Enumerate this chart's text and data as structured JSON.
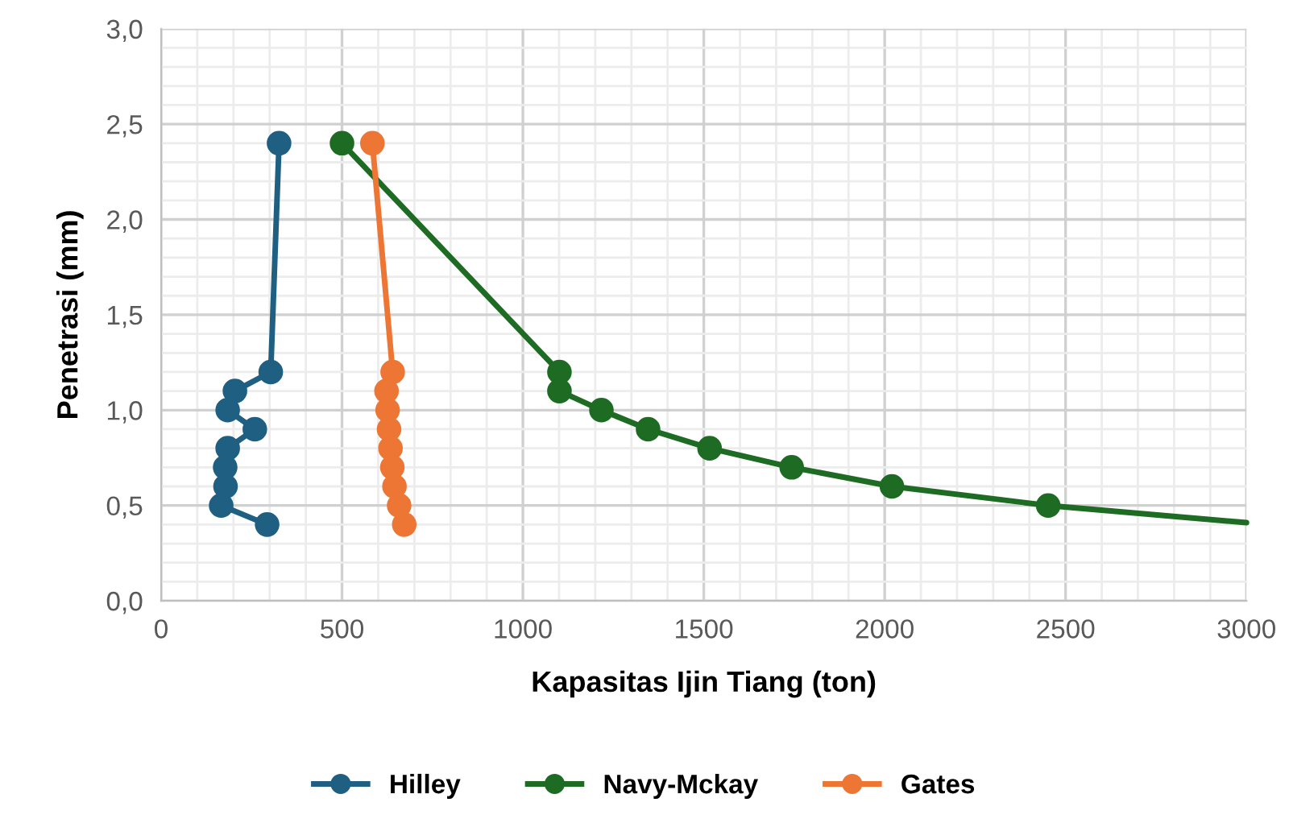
{
  "chart_data": {
    "type": "line",
    "xlabel": "Kapasitas Ijin Tiang (ton)",
    "ylabel": "Penetrasi (mm)",
    "xlim": [
      0,
      3000
    ],
    "xticks": [
      0,
      500,
      1000,
      1500,
      2000,
      2500,
      3000
    ],
    "ylim": [
      0,
      3.0
    ],
    "yticks": [
      {
        "value": 0,
        "label": "0,0"
      },
      {
        "value": 0.5,
        "label": "0,5"
      },
      {
        "value": 1.0,
        "label": "1,0"
      },
      {
        "value": 1.5,
        "label": "1,5"
      },
      {
        "value": 2.0,
        "label": "2,0"
      },
      {
        "value": 2.5,
        "label": "2,5"
      },
      {
        "value": 3.0,
        "label": "3,0"
      }
    ],
    "grid": true,
    "legend": "bottom",
    "marker": "circle",
    "line_style": "solid",
    "series": [
      {
        "name": "Hilley",
        "color": "#1f5f82",
        "x": [
          326,
          303,
          204,
          184,
          259,
          184,
          177,
          178,
          166,
          293
        ],
        "values": [
          2.4,
          1.2,
          1.1,
          1.0,
          0.9,
          0.8,
          0.7,
          0.6,
          0.5,
          0.4
        ]
      },
      {
        "name": "Navy-Mckay",
        "color": "#1e6b24",
        "x": [
          500,
          1101,
          1101,
          1217,
          1346,
          1516,
          1743,
          2020,
          2452
        ],
        "values": [
          2.4,
          1.2,
          1.1,
          1.0,
          0.9,
          0.8,
          0.7,
          0.6,
          0.5
        ]
      },
      {
        "name": "Gates",
        "color": "#ed7634",
        "x": [
          584,
          640,
          623,
          626,
          630,
          634,
          639,
          645,
          658,
          672
        ],
        "values": [
          2.4,
          1.2,
          1.1,
          1.0,
          0.9,
          0.8,
          0.7,
          0.6,
          0.5,
          0.4
        ]
      },
      {
        "color": "#1e6b24",
        "marker": "none",
        "x": [
          2452,
          3000
        ],
        "values": [
          0.5,
          0.41
        ]
      }
    ]
  }
}
